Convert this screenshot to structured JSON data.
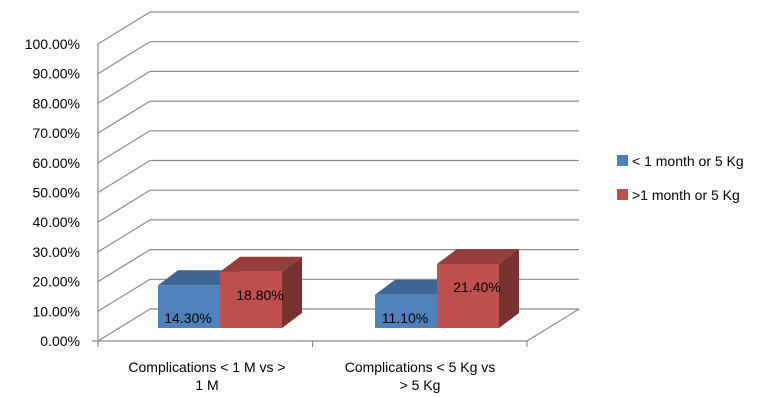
{
  "chart_data": {
    "type": "bar",
    "style": "3d-clustered-column",
    "categories": [
      [
        "Complications < 1 M vs >",
        "1 M"
      ],
      [
        "Complications < 5 Kg vs",
        "> 5 Kg"
      ]
    ],
    "series": [
      {
        "name": "< 1 month or 5 Kg",
        "values": [
          14.3,
          11.1
        ],
        "labels": [
          "14.30%",
          "11.10%"
        ],
        "color": "#4f81bd"
      },
      {
        "name": ">1 month or 5 Kg",
        "values": [
          18.8,
          21.4
        ],
        "labels": [
          "18.80%",
          "21.40%"
        ],
        "color": "#c0504d"
      }
    ],
    "ylim": [
      0,
      100
    ],
    "yticks": [
      "0.00%",
      "10.00%",
      "20.00%",
      "30.00%",
      "40.00%",
      "50.00%",
      "60.00%",
      "70.00%",
      "80.00%",
      "90.00%",
      "100.00%"
    ],
    "grid": true,
    "legend_position": "right"
  }
}
